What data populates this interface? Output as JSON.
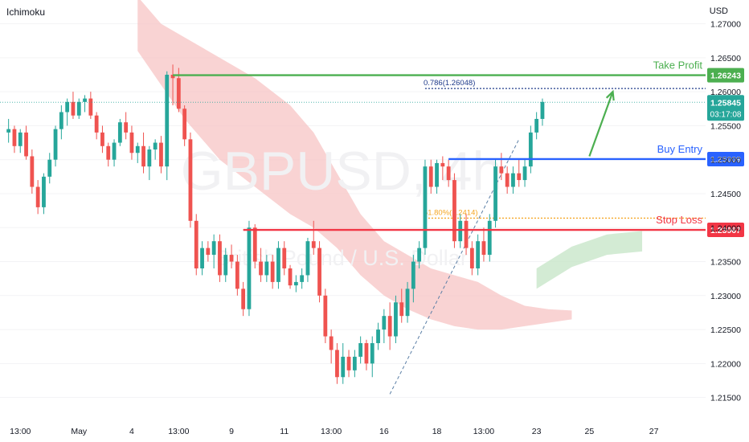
{
  "indicator_label": "Ichimoku",
  "currency_label": "USD",
  "colors": {
    "up": "#26a69a",
    "down": "#ef5350",
    "cloud": "#f7c4c4",
    "cloud_green": "#c8e6c9",
    "take_profit": "#4caf50",
    "entry": "#2962ff",
    "stop": "#f23645",
    "fib_blue": "#1e3a8a",
    "fib_orange": "#f5a623"
  },
  "watermark": {
    "symbol": "GBPUSD, 4h",
    "description": "British Pound / U.S. Dollar"
  },
  "chart_data": {
    "type": "candlestick",
    "symbol": "GBPUSD",
    "timeframe": "4h",
    "ylim": [
      1.212,
      1.2735
    ],
    "y_ticks": [
      "1.27000",
      "1.26500",
      "1.26000",
      "1.25500",
      "1.25000",
      "1.24500",
      "1.24000",
      "1.23500",
      "1.23000",
      "1.22500",
      "1.22000",
      "1.21500"
    ],
    "x_ticks": [
      {
        "label": "13:00",
        "i": 2
      },
      {
        "label": "May",
        "i": 12
      },
      {
        "label": "4",
        "i": 21
      },
      {
        "label": "13:00",
        "i": 29
      },
      {
        "label": "9",
        "i": 38
      },
      {
        "label": "11",
        "i": 47
      },
      {
        "label": "13:00",
        "i": 55
      },
      {
        "label": "16",
        "i": 64
      },
      {
        "label": "18",
        "i": 73
      },
      {
        "label": "13:00",
        "i": 81
      },
      {
        "label": "23",
        "i": 90
      },
      {
        "label": "25",
        "i": 99
      },
      {
        "label": "27",
        "i": 110
      }
    ],
    "candles": [
      [
        1.254,
        1.256,
        1.2525,
        1.2545
      ],
      [
        1.2545,
        1.255,
        1.251,
        1.252
      ],
      [
        1.252,
        1.2545,
        1.251,
        1.254
      ],
      [
        1.254,
        1.255,
        1.25,
        1.2505
      ],
      [
        1.2505,
        1.2515,
        1.245,
        1.246
      ],
      [
        1.246,
        1.247,
        1.242,
        1.243
      ],
      [
        1.243,
        1.248,
        1.242,
        1.2475
      ],
      [
        1.2475,
        1.251,
        1.2465,
        1.25
      ],
      [
        1.25,
        1.255,
        1.249,
        1.2545
      ],
      [
        1.2545,
        1.258,
        1.253,
        1.257
      ],
      [
        1.257,
        1.259,
        1.255,
        1.2585
      ],
      [
        1.2585,
        1.26,
        1.256,
        1.2565
      ],
      [
        1.2565,
        1.259,
        1.256,
        1.2585
      ],
      [
        1.2585,
        1.2595,
        1.257,
        1.259
      ],
      [
        1.259,
        1.26,
        1.256,
        1.2565
      ],
      [
        1.2565,
        1.257,
        1.253,
        1.254
      ],
      [
        1.254,
        1.255,
        1.251,
        1.252
      ],
      [
        1.252,
        1.2525,
        1.249,
        1.25
      ],
      [
        1.25,
        1.253,
        1.249,
        1.2525
      ],
      [
        1.2525,
        1.256,
        1.252,
        1.2555
      ],
      [
        1.2555,
        1.257,
        1.253,
        1.254
      ],
      [
        1.254,
        1.255,
        1.25,
        1.251
      ],
      [
        1.251,
        1.2525,
        1.2495,
        1.252
      ],
      [
        1.252,
        1.254,
        1.248,
        1.249
      ],
      [
        1.249,
        1.252,
        1.247,
        1.2515
      ],
      [
        1.2515,
        1.253,
        1.25,
        1.2525
      ],
      [
        1.2525,
        1.2535,
        1.248,
        1.249
      ],
      [
        1.249,
        1.263,
        1.247,
        1.2625
      ],
      [
        1.2625,
        1.264,
        1.258,
        1.262
      ],
      [
        1.262,
        1.2635,
        1.257,
        1.2575
      ],
      [
        1.2575,
        1.258,
        1.252,
        1.253
      ],
      [
        1.253,
        1.254,
        1.24,
        1.241
      ],
      [
        1.241,
        1.242,
        1.233,
        1.234
      ],
      [
        1.234,
        1.238,
        1.233,
        1.237
      ],
      [
        1.237,
        1.238,
        1.235,
        1.236
      ],
      [
        1.236,
        1.239,
        1.234,
        1.238
      ],
      [
        1.238,
        1.239,
        1.232,
        1.233
      ],
      [
        1.233,
        1.237,
        1.232,
        1.236
      ],
      [
        1.236,
        1.2375,
        1.234,
        1.235
      ],
      [
        1.235,
        1.236,
        1.23,
        1.231
      ],
      [
        1.231,
        1.232,
        1.227,
        1.228
      ],
      [
        1.228,
        1.241,
        1.227,
        1.24
      ],
      [
        1.24,
        1.2405,
        1.234,
        1.235
      ],
      [
        1.235,
        1.237,
        1.232,
        1.233
      ],
      [
        1.233,
        1.236,
        1.232,
        1.235
      ],
      [
        1.235,
        1.236,
        1.231,
        1.232
      ],
      [
        1.232,
        1.238,
        1.231,
        1.237
      ],
      [
        1.237,
        1.238,
        1.233,
        1.234
      ],
      [
        1.234,
        1.2345,
        1.231,
        1.2315
      ],
      [
        1.2315,
        1.233,
        1.2305,
        1.232
      ],
      [
        1.232,
        1.234,
        1.231,
        1.233
      ],
      [
        1.233,
        1.2385,
        1.232,
        1.238
      ],
      [
        1.238,
        1.241,
        1.236,
        1.237
      ],
      [
        1.237,
        1.238,
        1.229,
        1.23
      ],
      [
        1.23,
        1.231,
        1.223,
        1.224
      ],
      [
        1.224,
        1.225,
        1.22,
        1.222
      ],
      [
        1.222,
        1.223,
        1.217,
        1.218
      ],
      [
        1.218,
        1.223,
        1.217,
        1.221
      ],
      [
        1.221,
        1.222,
        1.218,
        1.219
      ],
      [
        1.219,
        1.222,
        1.218,
        1.221
      ],
      [
        1.221,
        1.224,
        1.22,
        1.223
      ],
      [
        1.223,
        1.2235,
        1.219,
        1.22
      ],
      [
        1.22,
        1.224,
        1.218,
        1.223
      ],
      [
        1.223,
        1.226,
        1.222,
        1.225
      ],
      [
        1.225,
        1.228,
        1.223,
        1.227
      ],
      [
        1.227,
        1.229,
        1.222,
        1.224
      ],
      [
        1.224,
        1.23,
        1.223,
        1.229
      ],
      [
        1.229,
        1.231,
        1.226,
        1.227
      ],
      [
        1.227,
        1.232,
        1.226,
        1.231
      ],
      [
        1.231,
        1.236,
        1.229,
        1.235
      ],
      [
        1.235,
        1.238,
        1.234,
        1.237
      ],
      [
        1.237,
        1.25,
        1.236,
        1.249
      ],
      [
        1.249,
        1.25,
        1.245,
        1.246
      ],
      [
        1.246,
        1.25,
        1.245,
        1.2495
      ],
      [
        1.2495,
        1.2505,
        1.247,
        1.249
      ],
      [
        1.249,
        1.25,
        1.246,
        1.247
      ],
      [
        1.247,
        1.248,
        1.237,
        1.238
      ],
      [
        1.238,
        1.242,
        1.237,
        1.241
      ],
      [
        1.241,
        1.242,
        1.236,
        1.237
      ],
      [
        1.237,
        1.238,
        1.233,
        1.234
      ],
      [
        1.234,
        1.239,
        1.233,
        1.238
      ],
      [
        1.238,
        1.24,
        1.235,
        1.236
      ],
      [
        1.236,
        1.242,
        1.235,
        1.241
      ],
      [
        1.241,
        1.25,
        1.24,
        1.249
      ],
      [
        1.249,
        1.251,
        1.247,
        1.248
      ],
      [
        1.248,
        1.249,
        1.245,
        1.246
      ],
      [
        1.246,
        1.249,
        1.245,
        1.248
      ],
      [
        1.248,
        1.25,
        1.246,
        1.247
      ],
      [
        1.247,
        1.25,
        1.246,
        1.249
      ],
      [
        1.249,
        1.255,
        1.248,
        1.254
      ],
      [
        1.254,
        1.257,
        1.253,
        1.256
      ],
      [
        1.256,
        1.259,
        1.255,
        1.2585
      ]
    ],
    "cloud_upper": [
      [
        22,
        1.274
      ],
      [
        26,
        1.27
      ],
      [
        30,
        1.268
      ],
      [
        36,
        1.265
      ],
      [
        42,
        1.262
      ],
      [
        48,
        1.258
      ],
      [
        52,
        1.254
      ],
      [
        56,
        1.248
      ],
      [
        60,
        1.242
      ],
      [
        64,
        1.238
      ],
      [
        68,
        1.236
      ],
      [
        72,
        1.234
      ],
      [
        76,
        1.233
      ],
      [
        80,
        1.232
      ],
      [
        84,
        1.23
      ],
      [
        88,
        1.2285
      ],
      [
        92,
        1.228
      ],
      [
        96,
        1.2278
      ]
    ],
    "cloud_lower": [
      [
        22,
        1.266
      ],
      [
        26,
        1.261
      ],
      [
        30,
        1.256
      ],
      [
        36,
        1.25
      ],
      [
        42,
        1.246
      ],
      [
        48,
        1.242
      ],
      [
        52,
        1.24
      ],
      [
        56,
        1.237
      ],
      [
        60,
        1.233
      ],
      [
        64,
        1.23
      ],
      [
        68,
        1.228
      ],
      [
        72,
        1.2265
      ],
      [
        76,
        1.2255
      ],
      [
        80,
        1.225
      ],
      [
        84,
        1.225
      ],
      [
        88,
        1.2255
      ],
      [
        92,
        1.226
      ],
      [
        96,
        1.2265
      ]
    ],
    "green_cloud": [
      [
        90,
        1.234
      ],
      [
        96,
        1.2372
      ],
      [
        102,
        1.239
      ],
      [
        108,
        1.2395
      ]
    ],
    "levels": [
      {
        "name": "Take Profit",
        "price": 1.26243,
        "price_label": "1.26243",
        "from_i": 28,
        "color": "#4caf50"
      },
      {
        "name": "Buy Entry",
        "price": 1.25009,
        "price_label": "1.25009",
        "from_i": 75,
        "color": "#2962ff"
      },
      {
        "name": "Stop Loss",
        "price": 1.23967,
        "price_label": "1.23967",
        "from_i": 40,
        "color": "#f23645"
      }
    ],
    "current_price": {
      "price": 1.25845,
      "label": "1.25845",
      "countdown": "03:17:08"
    },
    "fib_levels": [
      {
        "label": "0.786(1.26048)",
        "price": 1.26048,
        "from_i": 71
      },
      {
        "label": "61.80%(1.2414)",
        "price": 1.2414,
        "from_i": 71
      }
    ],
    "trend_line": {
      "from": [
        65,
        1.2155
      ],
      "to": [
        87,
        1.253
      ]
    },
    "arrow": {
      "from": [
        99,
        1.2505
      ],
      "to": [
        103,
        1.26
      ]
    }
  }
}
